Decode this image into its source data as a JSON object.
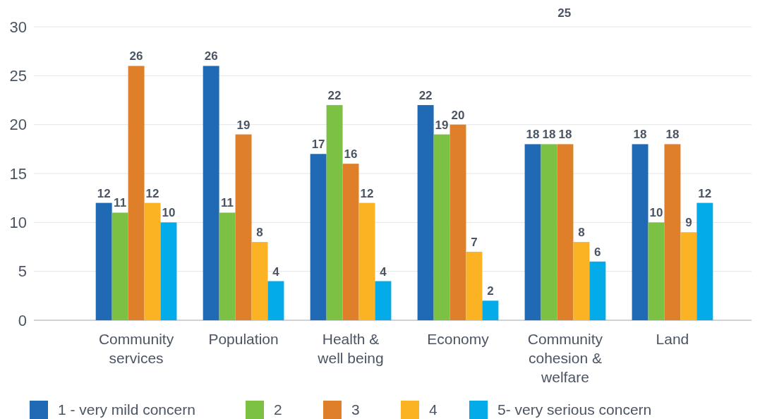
{
  "chart_data": {
    "type": "bar",
    "categories": [
      "Community services",
      "Population",
      "Health & well being",
      "Economy",
      "Community cohesion & welfare",
      "Land"
    ],
    "series": [
      {
        "name": "1 - very mild concern",
        "color": "#1f69b5",
        "values": [
          12,
          26,
          17,
          22,
          18,
          18
        ]
      },
      {
        "name": "2",
        "color": "#7cc143",
        "values": [
          11,
          11,
          22,
          19,
          18,
          10
        ]
      },
      {
        "name": "3",
        "color": "#e07f2a",
        "values": [
          26,
          19,
          16,
          20,
          18,
          18
        ]
      },
      {
        "name": "4",
        "color": "#fcb323",
        "values": [
          12,
          8,
          12,
          7,
          8,
          9
        ]
      },
      {
        "name": "5- very serious concern",
        "color": "#04abe9",
        "values": [
          10,
          4,
          4,
          2,
          6,
          12
        ]
      }
    ],
    "ylim": [
      0,
      30
    ],
    "yticks": [
      0,
      5,
      10,
      15,
      20,
      25,
      30
    ],
    "grid": "y",
    "legend": "bottom",
    "data_labels": true,
    "annotations": [
      "25"
    ]
  }
}
